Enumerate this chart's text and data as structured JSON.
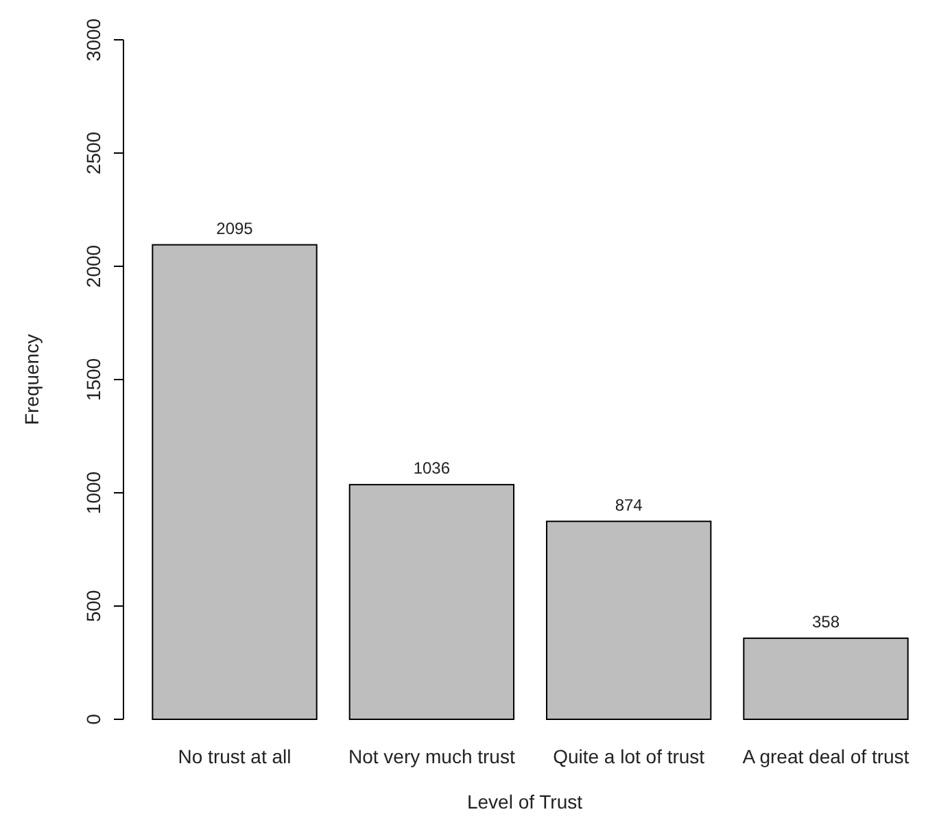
{
  "chart_data": {
    "type": "bar",
    "xlabel": "Level of Trust",
    "ylabel": "Frequency",
    "categories": [
      "No trust at all",
      "Not very much trust",
      "Quite a lot of trust",
      "A great deal of trust"
    ],
    "values": [
      2095,
      1036,
      874,
      358
    ],
    "color": "#bebebe",
    "data_labels": true,
    "ylim": [
      0,
      3000
    ],
    "yticks": [
      0,
      500,
      1000,
      1500,
      2000,
      2500,
      3000
    ]
  }
}
